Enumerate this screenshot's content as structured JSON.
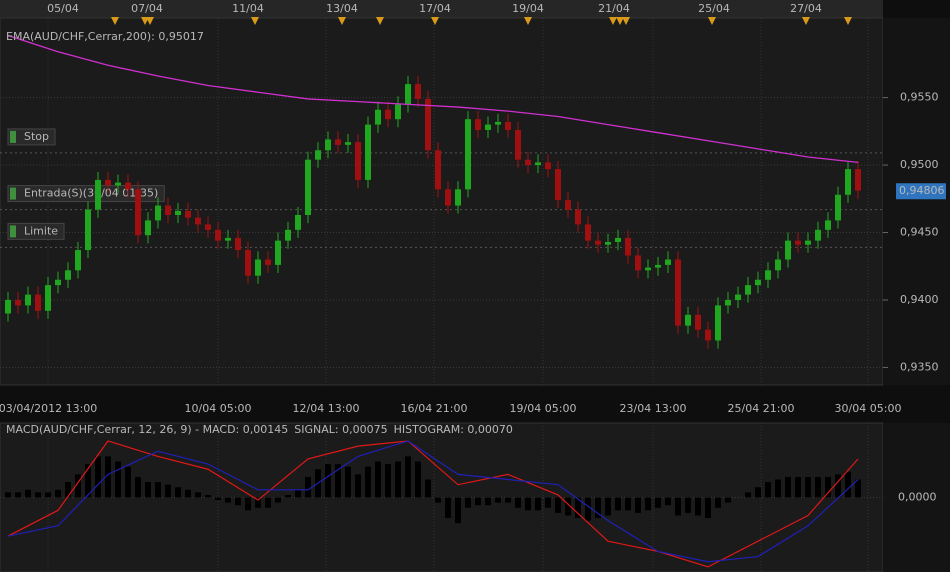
{
  "chart_data": [
    {
      "type": "candlestick",
      "top_dates": [
        "05/04",
        "07/04",
        "11/04",
        "13/04",
        "17/04",
        "19/04",
        "21/04",
        "25/04",
        "27/04"
      ],
      "bottom_dates": [
        "03/04/2012 13:00",
        "10/04 05:00",
        "12/04 13:00",
        "16/04 21:00",
        "19/04 05:00",
        "23/04 13:00",
        "25/04 21:00",
        "30/04 05:00"
      ],
      "ylim": [
        0.9337,
        0.9609
      ],
      "yticks": [
        {
          "value": 0.955,
          "label": "0,9550"
        },
        {
          "value": 0.95,
          "label": "0,9500"
        },
        {
          "value": 0.945,
          "label": "0,9450"
        },
        {
          "value": 0.94,
          "label": "0,9400"
        },
        {
          "value": 0.935,
          "label": "0,9350"
        }
      ],
      "up_color": "#1fa81f",
      "down_color": "#a01010",
      "last_price": {
        "value": 0.94806,
        "label": "0,94806"
      },
      "levels": [
        {
          "label": "Stop",
          "value": 0.9509,
          "color": "#c0507a"
        },
        {
          "label": "Entrada(S)(30/04 01:35)",
          "value": 0.9467,
          "color": "#5fa5a5"
        },
        {
          "label": "Limite",
          "value": 0.9439,
          "color": "#9a9ac8"
        }
      ],
      "ema": {
        "name": "EMA(AUD/CHF,Cerrar,200): 0,95017",
        "color": "#d030d0",
        "x": [
          0,
          5,
          10,
          15,
          20,
          25,
          30,
          35,
          40,
          45,
          50,
          55,
          60,
          65,
          70,
          75,
          80,
          85
        ],
        "values": [
          0.9596,
          0.9584,
          0.9574,
          0.9566,
          0.9559,
          0.9554,
          0.9549,
          0.9547,
          0.9545,
          0.9543,
          0.954,
          0.9536,
          0.953,
          0.9524,
          0.9518,
          0.9512,
          0.9506,
          0.9502
        ]
      },
      "candles": [
        [
          0.939,
          0.9406,
          0.9384,
          0.94
        ],
        [
          0.94,
          0.9406,
          0.939,
          0.9396
        ],
        [
          0.9396,
          0.941,
          0.939,
          0.9404
        ],
        [
          0.9404,
          0.941,
          0.9386,
          0.9392
        ],
        [
          0.9392,
          0.9417,
          0.9386,
          0.9411
        ],
        [
          0.9411,
          0.9421,
          0.9405,
          0.9415
        ],
        [
          0.9415,
          0.9428,
          0.9409,
          0.9422
        ],
        [
          0.9422,
          0.9443,
          0.9416,
          0.9437
        ],
        [
          0.9437,
          0.9473,
          0.9431,
          0.9467
        ],
        [
          0.9467,
          0.9495,
          0.9461,
          0.9489
        ],
        [
          0.9489,
          0.9495,
          0.9479,
          0.9485
        ],
        [
          0.9485,
          0.9493,
          0.9479,
          0.9487
        ],
        [
          0.9487,
          0.9493,
          0.9476,
          0.9482
        ],
        [
          0.9482,
          0.9488,
          0.9442,
          0.9448
        ],
        [
          0.9448,
          0.9465,
          0.9442,
          0.9459
        ],
        [
          0.9459,
          0.9476,
          0.9453,
          0.947
        ],
        [
          0.947,
          0.9476,
          0.9457,
          0.9463
        ],
        [
          0.9463,
          0.9472,
          0.9457,
          0.9466
        ],
        [
          0.9466,
          0.9472,
          0.9455,
          0.9461
        ],
        [
          0.9461,
          0.9467,
          0.945,
          0.9456
        ],
        [
          0.9456,
          0.9462,
          0.9446,
          0.9452
        ],
        [
          0.9452,
          0.9458,
          0.9438,
          0.9444
        ],
        [
          0.9444,
          0.9452,
          0.9438,
          0.9446
        ],
        [
          0.9446,
          0.9452,
          0.9431,
          0.9437
        ],
        [
          0.9437,
          0.9443,
          0.9412,
          0.9418
        ],
        [
          0.9418,
          0.9436,
          0.9412,
          0.943
        ],
        [
          0.943,
          0.9436,
          0.942,
          0.9426
        ],
        [
          0.9426,
          0.945,
          0.942,
          0.9444
        ],
        [
          0.9444,
          0.9458,
          0.9438,
          0.9452
        ],
        [
          0.9452,
          0.9469,
          0.9446,
          0.9463
        ],
        [
          0.9463,
          0.951,
          0.9457,
          0.9504
        ],
        [
          0.9504,
          0.9517,
          0.9498,
          0.9511
        ],
        [
          0.9511,
          0.9525,
          0.9505,
          0.9519
        ],
        [
          0.9519,
          0.9525,
          0.9509,
          0.9515
        ],
        [
          0.9515,
          0.9523,
          0.9509,
          0.9517
        ],
        [
          0.9517,
          0.9523,
          0.9483,
          0.9489
        ],
        [
          0.9489,
          0.9536,
          0.9483,
          0.953
        ],
        [
          0.953,
          0.9547,
          0.9524,
          0.9541
        ],
        [
          0.9541,
          0.9547,
          0.9528,
          0.9534
        ],
        [
          0.9534,
          0.9551,
          0.9528,
          0.9545
        ],
        [
          0.9545,
          0.9566,
          0.9539,
          0.956
        ],
        [
          0.956,
          0.9566,
          0.9543,
          0.9549
        ],
        [
          0.9549,
          0.9555,
          0.9505,
          0.9511
        ],
        [
          0.9511,
          0.9517,
          0.9476,
          0.9482
        ],
        [
          0.9482,
          0.9488,
          0.9464,
          0.947
        ],
        [
          0.947,
          0.9488,
          0.9464,
          0.9482
        ],
        [
          0.9482,
          0.954,
          0.9476,
          0.9534
        ],
        [
          0.9534,
          0.954,
          0.952,
          0.9526
        ],
        [
          0.9526,
          0.9536,
          0.952,
          0.953
        ],
        [
          0.953,
          0.9538,
          0.9524,
          0.9532
        ],
        [
          0.9532,
          0.9538,
          0.952,
          0.9526
        ],
        [
          0.9526,
          0.9532,
          0.9498,
          0.9504
        ],
        [
          0.9504,
          0.951,
          0.9494,
          0.95
        ],
        [
          0.95,
          0.9508,
          0.9494,
          0.9502
        ],
        [
          0.9502,
          0.9508,
          0.9491,
          0.9497
        ],
        [
          0.9497,
          0.9503,
          0.9468,
          0.9474
        ],
        [
          0.9474,
          0.948,
          0.9461,
          0.9467
        ],
        [
          0.9467,
          0.9473,
          0.945,
          0.9456
        ],
        [
          0.9456,
          0.9462,
          0.9438,
          0.9444
        ],
        [
          0.9444,
          0.945,
          0.9435,
          0.9441
        ],
        [
          0.9441,
          0.9449,
          0.9435,
          0.9443
        ],
        [
          0.9443,
          0.9452,
          0.9437,
          0.9446
        ],
        [
          0.9446,
          0.9452,
          0.9427,
          0.9433
        ],
        [
          0.9433,
          0.9439,
          0.9416,
          0.9422
        ],
        [
          0.9422,
          0.943,
          0.9416,
          0.9424
        ],
        [
          0.9424,
          0.9432,
          0.9418,
          0.9426
        ],
        [
          0.9426,
          0.9436,
          0.942,
          0.943
        ],
        [
          0.943,
          0.9436,
          0.9375,
          0.9381
        ],
        [
          0.9381,
          0.9395,
          0.9375,
          0.9389
        ],
        [
          0.9389,
          0.9395,
          0.9372,
          0.9378
        ],
        [
          0.9378,
          0.9384,
          0.9364,
          0.937
        ],
        [
          0.937,
          0.9402,
          0.9364,
          0.9396
        ],
        [
          0.9396,
          0.9406,
          0.939,
          0.94
        ],
        [
          0.94,
          0.941,
          0.9394,
          0.9404
        ],
        [
          0.9404,
          0.9417,
          0.9398,
          0.9411
        ],
        [
          0.9411,
          0.9421,
          0.9405,
          0.9415
        ],
        [
          0.9415,
          0.9428,
          0.9409,
          0.9422
        ],
        [
          0.9422,
          0.9436,
          0.9416,
          0.943
        ],
        [
          0.943,
          0.945,
          0.9424,
          0.9444
        ],
        [
          0.9444,
          0.945,
          0.9435,
          0.9441
        ],
        [
          0.9441,
          0.945,
          0.9435,
          0.9444
        ],
        [
          0.9444,
          0.9458,
          0.9438,
          0.9452
        ],
        [
          0.9452,
          0.9465,
          0.9446,
          0.9459
        ],
        [
          0.9459,
          0.9484,
          0.9453,
          0.9478
        ],
        [
          0.9478,
          0.9503,
          0.9472,
          0.9497
        ],
        [
          0.9497,
          0.9503,
          0.9475,
          0.9481
        ]
      ]
    },
    {
      "type": "macd",
      "ylim": [
        -0.0029,
        0.0029
      ],
      "yticks": [
        {
          "value": 0,
          "label": "0,0000"
        }
      ],
      "histogram": {
        "name": "HISTOGRAM: 0,00070",
        "color": "#000000",
        "values": [
          0.0002,
          0.0002,
          0.0003,
          0.0002,
          0.0002,
          0.0003,
          0.0006,
          0.0009,
          0.0013,
          0.0016,
          0.0016,
          0.0014,
          0.0012,
          0.0008,
          0.0006,
          0.0006,
          0.0005,
          0.0004,
          0.0003,
          0.0002,
          0.0001,
          -0.0001,
          -0.0002,
          -0.0003,
          -0.0005,
          -0.0004,
          -0.0004,
          -0.0002,
          0.0001,
          0.0003,
          0.0008,
          0.0011,
          0.0013,
          0.0013,
          0.0012,
          0.0009,
          0.0012,
          0.0014,
          0.0013,
          0.0014,
          0.0016,
          0.0014,
          0.0007,
          -0.0002,
          -0.0008,
          -0.001,
          -0.0004,
          -0.0003,
          -0.0003,
          -0.0002,
          -0.0002,
          -0.0004,
          -0.0005,
          -0.0005,
          -0.0004,
          -0.0006,
          -0.0007,
          -0.0008,
          -0.0009,
          -0.0008,
          -0.0007,
          -0.0005,
          -0.0005,
          -0.0006,
          -0.0005,
          -0.0004,
          -0.0003,
          -0.0007,
          -0.0006,
          -0.0007,
          -0.0008,
          -0.0004,
          -0.0002,
          0,
          0.0002,
          0.0004,
          0.0006,
          0.0007,
          0.0008,
          0.0008,
          0.0008,
          0.0008,
          0.0008,
          0.0009,
          0.001,
          0.0007
        ]
      },
      "series": [
        {
          "name": "MACD(AUD/CHF,Cerrar, 12, 26, 9) -  MACD: 0,00145",
          "color": "#e01818",
          "x": [
            0,
            5,
            10,
            15,
            20,
            25,
            30,
            35,
            40,
            45,
            50,
            55,
            60,
            65,
            70,
            75,
            80,
            85
          ],
          "values": [
            -0.0015,
            -0.0005,
            0.0022,
            0.0016,
            0.0011,
            -0.0001,
            0.0015,
            0.002,
            0.0022,
            0.0005,
            0.0009,
            0.0001,
            -0.0017,
            -0.0021,
            -0.0027,
            -0.0017,
            -0.0007,
            0.0015
          ]
        },
        {
          "name": "SIGNAL: 0,00075",
          "color": "#2020b8",
          "x": [
            0,
            5,
            10,
            15,
            20,
            25,
            30,
            35,
            40,
            45,
            50,
            55,
            60,
            65,
            70,
            75,
            80,
            85
          ],
          "values": [
            -0.0015,
            -0.0011,
            0.0009,
            0.0018,
            0.0013,
            0.0003,
            0.0003,
            0.0016,
            0.0022,
            0.0009,
            0.0007,
            0.0005,
            -0.0009,
            -0.0021,
            -0.0025,
            -0.0023,
            -0.0011,
            0.0007
          ]
        }
      ]
    }
  ]
}
